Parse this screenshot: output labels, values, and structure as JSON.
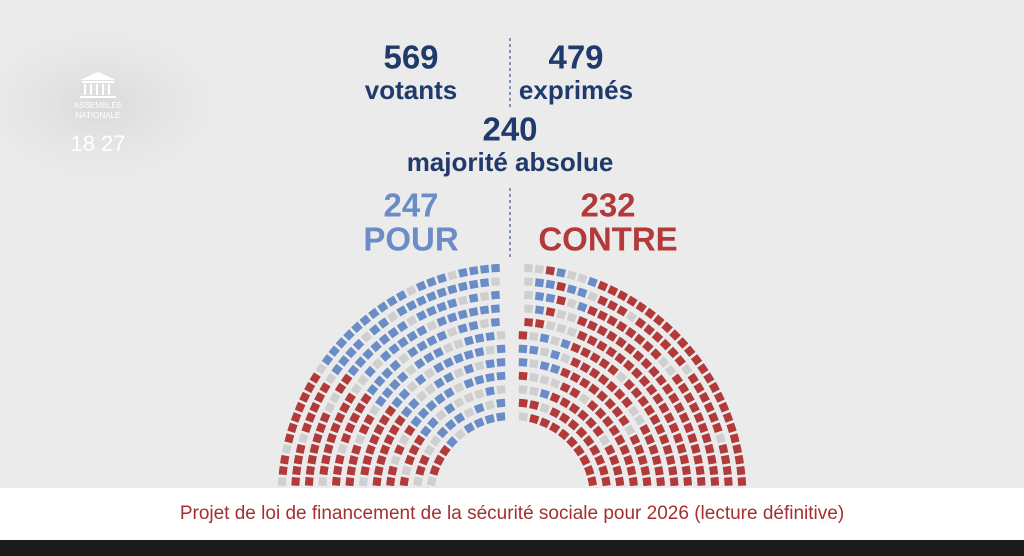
{
  "logo": {
    "line1": "ASSEMBLÉE",
    "line2": "NATIONALE"
  },
  "clock": "18 27",
  "votants": {
    "number": 569,
    "label": "votants"
  },
  "exprimes": {
    "number": 479,
    "label": "exprimés"
  },
  "majorite": {
    "number": 240,
    "label": "majorité absolue"
  },
  "pour": {
    "number": 247,
    "label": "POUR"
  },
  "contre": {
    "number": 232,
    "label": "CONTRE"
  },
  "caption": "Projet de loi de financement de la sécurité sociale pour 2026 (lecture définitive)"
}
